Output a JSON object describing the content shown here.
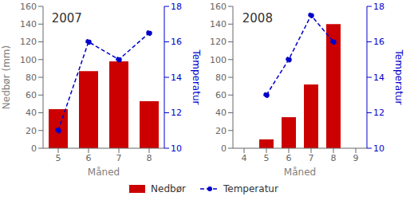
{
  "chart_data": [
    {
      "type": "bar",
      "title": "2007",
      "x": [
        5,
        6,
        7,
        8
      ],
      "xlim": [
        4.5,
        8.5
      ],
      "xticks": [
        5,
        6,
        7,
        8
      ],
      "ylim": [
        0,
        160
      ],
      "yticks": [
        0,
        20,
        40,
        60,
        80,
        100,
        120,
        140,
        160
      ],
      "y2lim": [
        10,
        18
      ],
      "y2ticks": [
        10,
        12,
        14,
        16,
        18
      ],
      "x_label": "Måned",
      "y_label": "Nedbør (mm)",
      "y2_label": "Temperatur",
      "legend": "bottom",
      "series": [
        {
          "name": "Nedbør",
          "type": "bar",
          "color": "#cc0000",
          "values": [
            44,
            87,
            98,
            53
          ]
        },
        {
          "name": "Temperatur",
          "type": "line",
          "axis": "y2",
          "color": "#0000cc",
          "line_style": "dashed",
          "marker": "circle",
          "values": [
            11.0,
            16.0,
            15.0,
            16.5
          ]
        }
      ]
    },
    {
      "type": "bar",
      "title": "2008",
      "x": [
        5,
        6,
        7,
        8
      ],
      "xlim": [
        3.5,
        9.5
      ],
      "xticks": [
        4,
        5,
        6,
        7,
        8,
        9
      ],
      "ylim": [
        0,
        160
      ],
      "yticks": [
        0,
        20,
        40,
        60,
        80,
        100,
        120,
        140,
        160
      ],
      "y2lim": [
        10,
        18
      ],
      "y2ticks": [
        10,
        12,
        14,
        16,
        18
      ],
      "x_label": "Måned",
      "y2_label": "Temperatur",
      "series": [
        {
          "name": "Nedbør",
          "type": "bar",
          "color": "#cc0000",
          "values": [
            10,
            35,
            72,
            140
          ]
        },
        {
          "name": "Temperatur",
          "type": "line",
          "axis": "y2",
          "color": "#0000cc",
          "line_style": "dashed",
          "marker": "circle",
          "values": [
            13.0,
            15.0,
            17.5,
            16.0
          ]
        }
      ]
    }
  ]
}
